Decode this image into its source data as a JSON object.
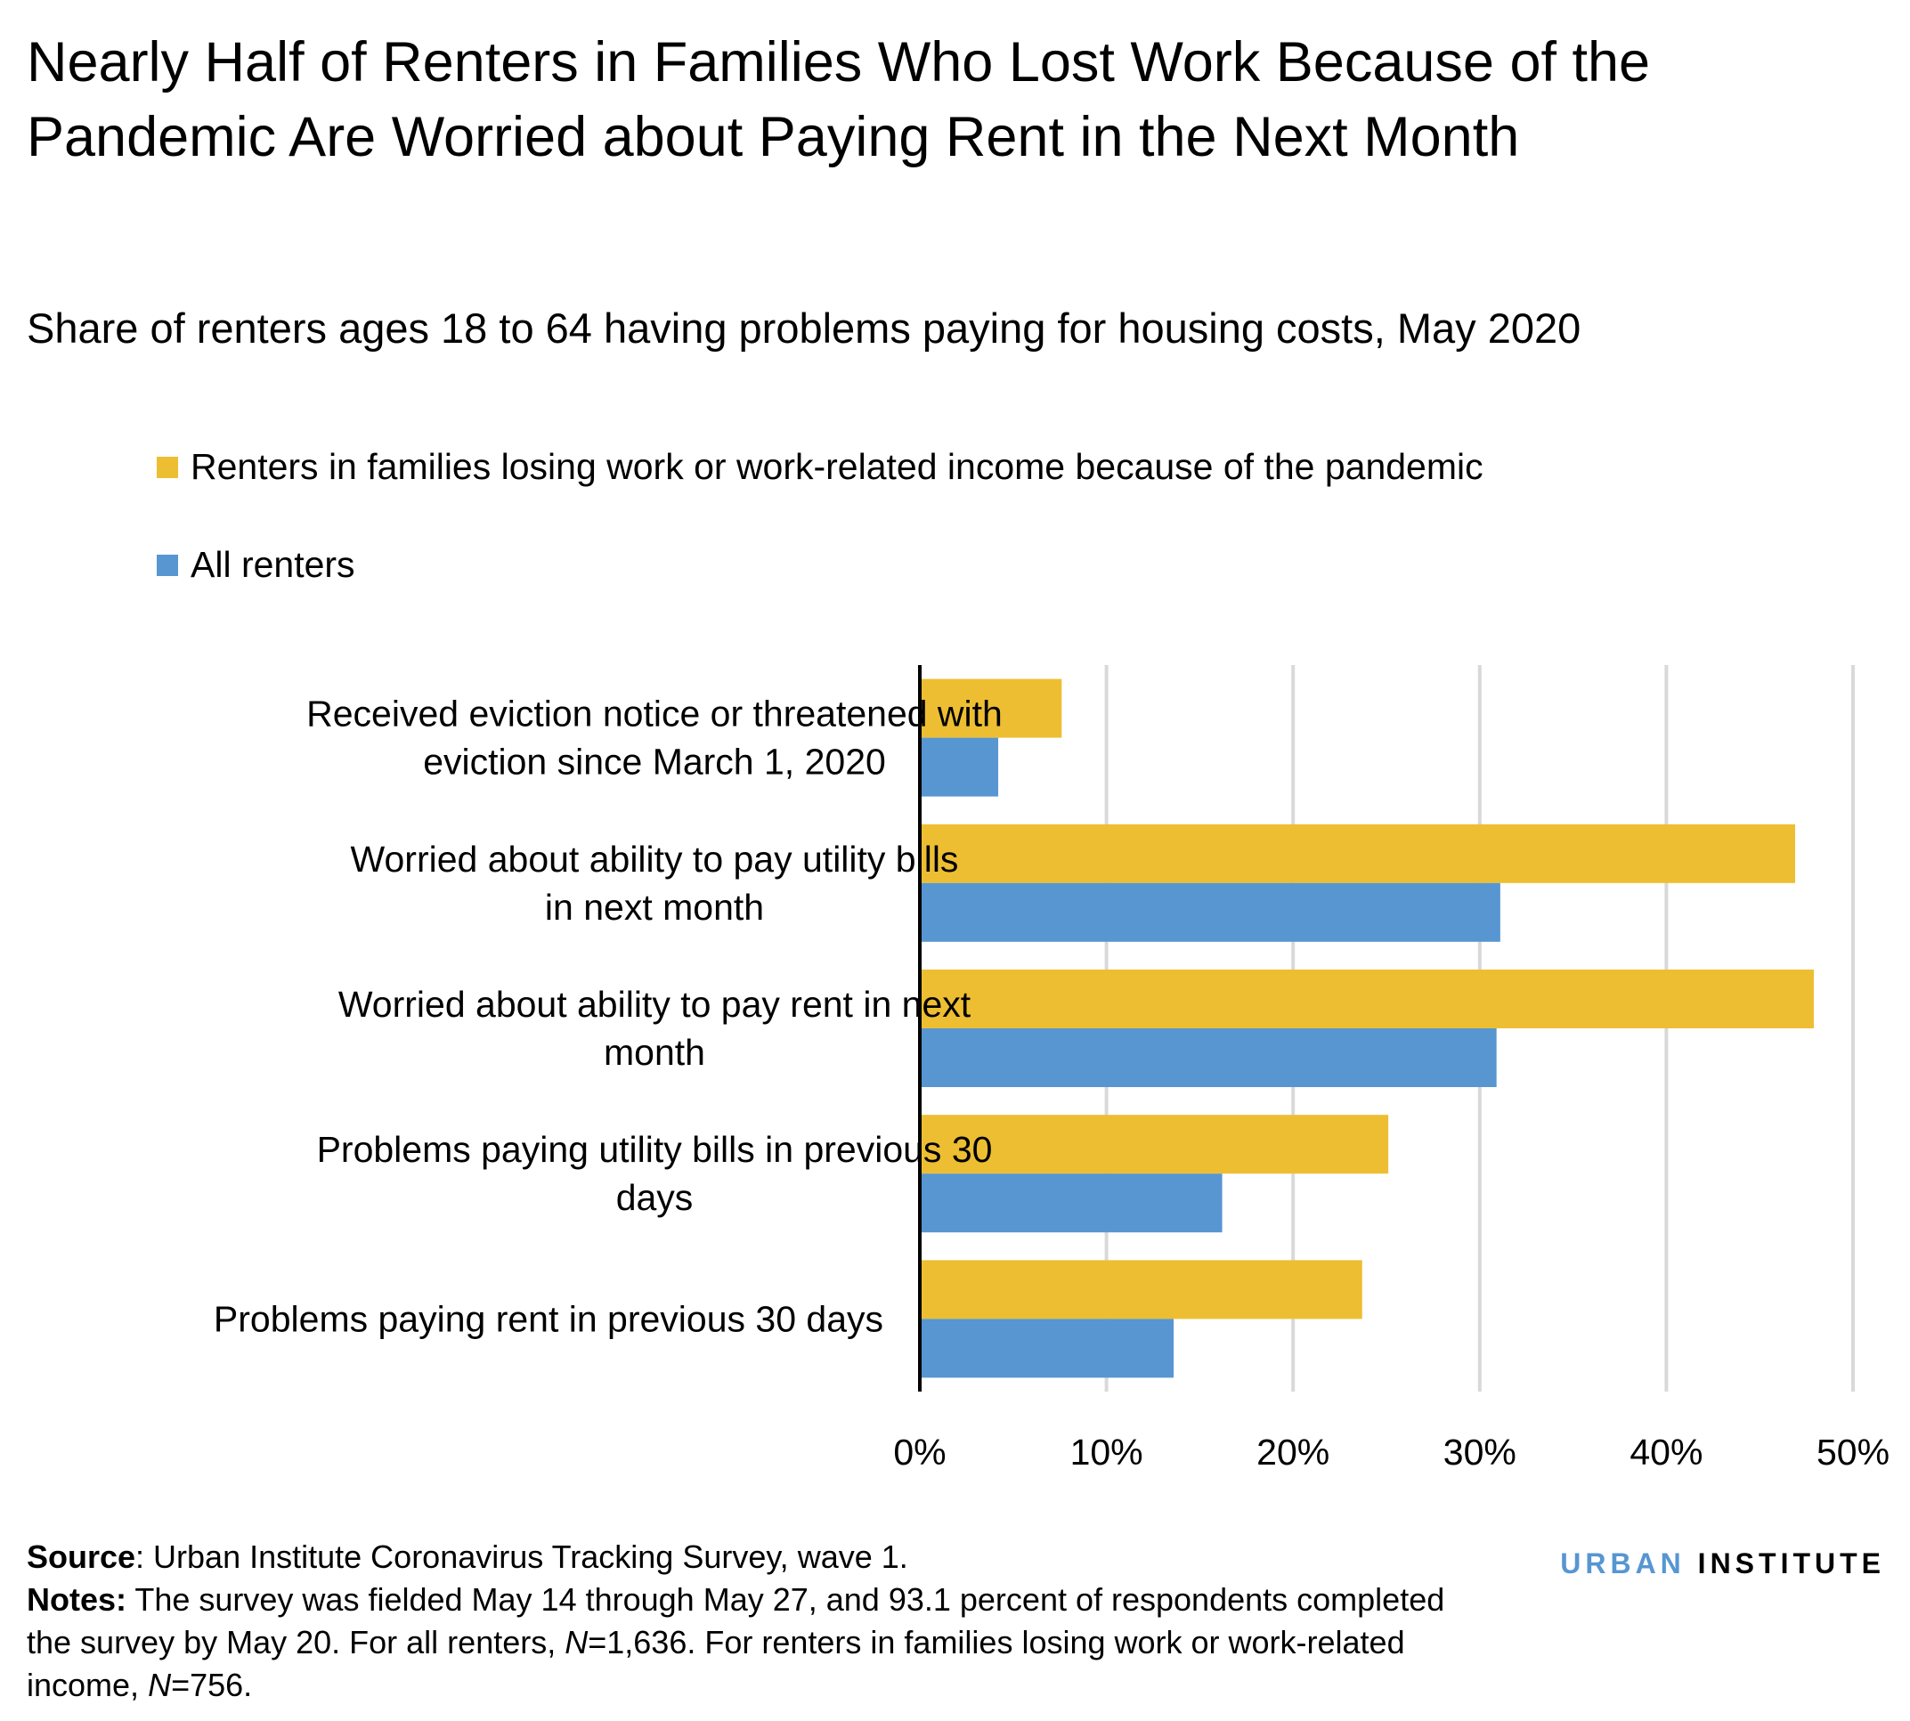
{
  "chart_data": {
    "type": "bar",
    "orientation": "horizontal",
    "title": "Nearly Half of Renters in Families Who Lost Work Because of the Pandemic Are Worried about Paying Rent in the Next Month",
    "subtitle": "Share of renters ages 18 to 64 having problems paying for housing costs, May 2020",
    "categories": [
      "Received eviction notice or threatened with eviction since March 1, 2020",
      "Worried about ability to pay utility bills in next month",
      "Worried about ability to pay rent in next month",
      "Problems paying utility bills in previous 30 days",
      "Problems paying rent in previous 30 days"
    ],
    "series": [
      {
        "name": "Renters in families losing work or work-related income because of the pandemic",
        "color": "#EDBE32",
        "values": [
          7.6,
          46.9,
          47.9,
          25.1,
          23.7
        ]
      },
      {
        "name": "All renters",
        "color": "#5796D1",
        "values": [
          4.2,
          31.1,
          30.9,
          16.2,
          13.6
        ]
      }
    ],
    "xlim": [
      0,
      50
    ],
    "xticks": [
      "0%",
      "10%",
      "20%",
      "30%",
      "40%",
      "50%"
    ],
    "grid": true,
    "legend": "top-left"
  },
  "footer": {
    "source_label": "Source",
    "source_text": ": Urban Institute Coronavirus Tracking Survey, wave 1.",
    "notes_label": "Notes:",
    "notes_text_1": " The survey was fielded May 14 through May 27, and 93.1 percent of respondents completed the survey by May 20.  For all renters, ",
    "n_symbol": "N",
    "notes_text_2": "=1,636. For renters in families losing work or work-related income, ",
    "notes_text_3": "=756."
  },
  "logo": {
    "part1": "URBAN",
    "part2": "INSTITUTE",
    "color1": "#5796D1",
    "color2": "#000000"
  }
}
